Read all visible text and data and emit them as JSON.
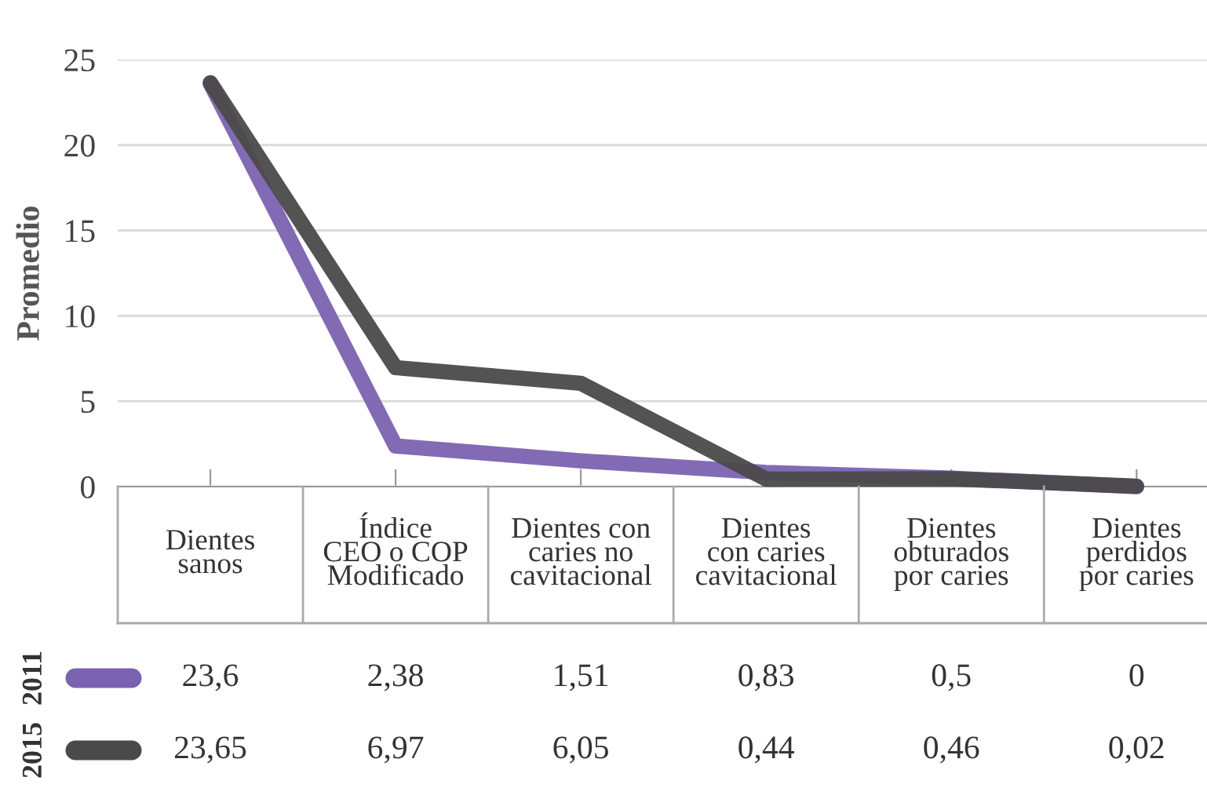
{
  "chart_data": {
    "type": "line",
    "ylabel": "Promedio",
    "categories": [
      "Dientes\nsanos",
      "Índice\nCEO o COP\nModificado",
      "Dientes con\ncaries no\ncavitacional",
      "Dientes\ncon caries\ncavitacional",
      "Dientes\nobturados\npor caries",
      "Dientes\nperdidos\npor caries"
    ],
    "series": [
      {
        "name": "2011",
        "color": "#7b62b0",
        "values": [
          23.6,
          2.38,
          1.51,
          0.83,
          0.5,
          0
        ],
        "value_labels": [
          "23,6",
          "2,38",
          "1,51",
          "0,83",
          "0,5",
          "0"
        ]
      },
      {
        "name": "2015",
        "color": "#4a4a4a",
        "values": [
          23.65,
          6.97,
          6.05,
          0.44,
          0.46,
          0.02
        ],
        "value_labels": [
          "23,65",
          "6,97",
          "6,05",
          "0,44",
          "0,46",
          "0,02"
        ]
      }
    ],
    "ylim": [
      0,
      25
    ],
    "yticks": [
      0,
      5,
      10,
      15,
      20,
      25
    ],
    "grid": "y",
    "legend": "bottom",
    "marker": "none",
    "line_style": "solid"
  }
}
